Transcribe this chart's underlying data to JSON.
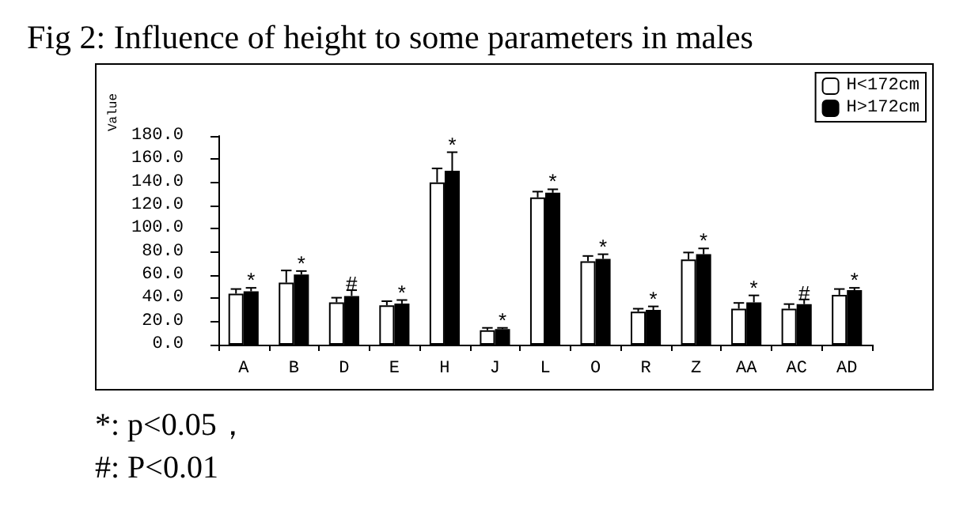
{
  "chart_data": {
    "type": "bar",
    "title": "Fig 2: Influence of height to some parameters in males",
    "ylabel": "Value",
    "categories": [
      "A",
      "B",
      "D",
      "E",
      "H",
      "J",
      "L",
      "O",
      "R",
      "Z",
      "AA",
      "AC",
      "AD"
    ],
    "series": [
      {
        "name": "H<172cm",
        "color": "#ffffff",
        "values": [
          44,
          53.5,
          36.5,
          34,
          140,
          12.5,
          127,
          72,
          28.5,
          73.5,
          31,
          31,
          43
        ],
        "errors": [
          [
            44,
            48
          ],
          [
            53.5,
            64
          ],
          [
            36.5,
            40.5
          ],
          [
            34,
            37.5
          ],
          [
            140,
            152
          ],
          [
            12.5,
            14.5
          ],
          [
            127,
            132
          ],
          [
            72,
            76.5
          ],
          [
            28.5,
            31
          ],
          [
            73.5,
            79.5
          ],
          [
            31,
            36
          ],
          [
            31,
            35
          ],
          [
            43,
            48
          ]
        ]
      },
      {
        "name": "H>172cm",
        "color": "#000000",
        "values": [
          46,
          60.5,
          42,
          35.5,
          150,
          13.5,
          131,
          74,
          30,
          78,
          36.5,
          35,
          47
        ],
        "errors": [
          [
            46,
            49
          ],
          [
            60.5,
            63.5
          ],
          [
            42,
            47
          ],
          [
            35.5,
            38.5
          ],
          [
            150,
            166
          ],
          [
            13.5,
            14.5
          ],
          [
            131,
            134
          ],
          [
            74,
            78
          ],
          [
            30,
            33
          ],
          [
            78,
            83
          ],
          [
            36.5,
            42.5
          ],
          [
            35,
            39
          ],
          [
            47,
            49
          ]
        ]
      }
    ],
    "ylim": [
      0,
      180
    ],
    "yticks": [
      {
        "value": 0,
        "label": "0.0"
      },
      {
        "value": 20,
        "label": "20.0"
      },
      {
        "value": 40,
        "label": "40.0"
      },
      {
        "value": 60,
        "label": "60.0"
      },
      {
        "value": 80,
        "label": "80.0"
      },
      {
        "value": 100,
        "label": "100.0"
      },
      {
        "value": 120,
        "label": "120.0"
      },
      {
        "value": 140,
        "label": "140.0"
      },
      {
        "value": 160,
        "label": "160.0"
      },
      {
        "value": 180,
        "label": "180.0"
      }
    ],
    "grid": false,
    "legend": "top right",
    "annotations": [
      {
        "text": "*",
        "x": "A",
        "y": 49
      },
      {
        "text": "*",
        "x": "B",
        "y": 63.5
      },
      {
        "text": "#",
        "x": "D",
        "y": 47
      },
      {
        "text": "*",
        "x": "E",
        "y": 38.5
      },
      {
        "text": "*",
        "x": "H",
        "y": 166
      },
      {
        "text": "*",
        "x": "J",
        "y": 14.5
      },
      {
        "text": "*",
        "x": "L",
        "y": 134
      },
      {
        "text": "*",
        "x": "O",
        "y": 78
      },
      {
        "text": "*",
        "x": "R",
        "y": 33
      },
      {
        "text": "*",
        "x": "Z",
        "y": 83
      },
      {
        "text": "*",
        "x": "AA",
        "y": 42.5
      },
      {
        "text": "#",
        "x": "AC",
        "y": 39
      },
      {
        "text": "*",
        "x": "AD",
        "y": 49
      },
      "*: p<0.05，",
      "#: P<0.01"
    ]
  }
}
